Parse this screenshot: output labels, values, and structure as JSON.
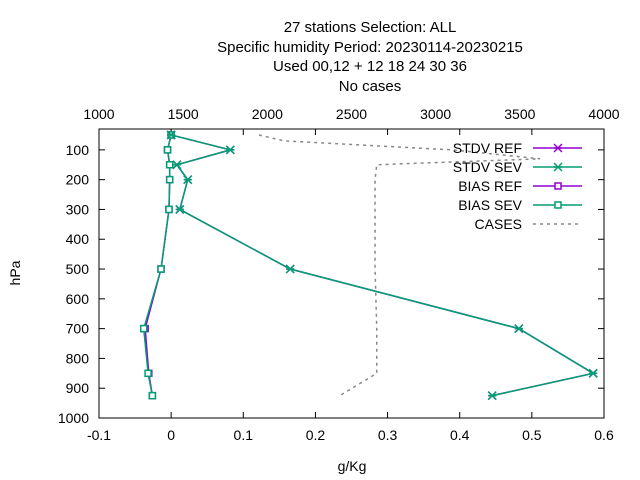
{
  "chart_data": {
    "type": "line",
    "title_lines": [
      "27 stations Selection: ALL",
      "Specific humidity  Period: 20230114-20230215",
      "Used  00,12  + 12 18 24 30 36",
      "No cases"
    ],
    "xlabel": "g/Kg",
    "ylabel": "hPa",
    "x_bottom": {
      "range": [
        -0.1,
        0.6
      ],
      "ticks": [
        "-0.1",
        "0",
        "0.1",
        "0.2",
        "0.3",
        "0.4",
        "0.5",
        "0.6"
      ]
    },
    "x_top": {
      "range": [
        1000,
        4000
      ],
      "ticks": [
        "1000",
        "1500",
        "2000",
        "2500",
        "3000",
        "3500",
        "4000"
      ]
    },
    "y": {
      "range": [
        1000,
        30
      ],
      "inverted": true,
      "ticks": [
        "100",
        "200",
        "300",
        "400",
        "500",
        "600",
        "700",
        "800",
        "900",
        "1000"
      ]
    },
    "grid": false,
    "legend_position": "top-right",
    "series": [
      {
        "name": "STDV REF",
        "color": "#9400d3",
        "marker": "x",
        "axis": "bottom",
        "points": [
          [
            0.0,
            50
          ],
          [
            0.082,
            100
          ],
          [
            0.008,
            150
          ],
          [
            0.023,
            200
          ],
          [
            0.012,
            300
          ],
          [
            0.165,
            500
          ],
          [
            0.482,
            700
          ],
          [
            0.585,
            850
          ],
          [
            0.445,
            925
          ]
        ]
      },
      {
        "name": "STDV SEV",
        "color": "#009e73",
        "marker": "x",
        "axis": "bottom",
        "points": [
          [
            0.0,
            50
          ],
          [
            0.082,
            100
          ],
          [
            0.008,
            150
          ],
          [
            0.023,
            200
          ],
          [
            0.012,
            300
          ],
          [
            0.165,
            500
          ],
          [
            0.482,
            700
          ],
          [
            0.585,
            850
          ],
          [
            0.445,
            925
          ]
        ]
      },
      {
        "name": "BIAS REF",
        "color": "#9400d3",
        "marker": "square",
        "axis": "bottom",
        "points": [
          [
            0.0,
            50
          ],
          [
            -0.005,
            100
          ],
          [
            -0.002,
            150
          ],
          [
            -0.002,
            200
          ],
          [
            -0.003,
            300
          ],
          [
            -0.014,
            500
          ],
          [
            -0.036,
            700
          ],
          [
            -0.031,
            850
          ],
          [
            -0.026,
            925
          ]
        ]
      },
      {
        "name": "BIAS SEV",
        "color": "#009e73",
        "marker": "square",
        "axis": "bottom",
        "points": [
          [
            0.0,
            50
          ],
          [
            -0.005,
            100
          ],
          [
            -0.002,
            150
          ],
          [
            -0.002,
            200
          ],
          [
            -0.003,
            300
          ],
          [
            -0.014,
            500
          ],
          [
            -0.038,
            700
          ],
          [
            -0.032,
            850
          ],
          [
            -0.026,
            925
          ]
        ]
      },
      {
        "name": "CASES",
        "color": "#888888",
        "marker": "none",
        "dashed": true,
        "axis": "top",
        "points": [
          [
            1950,
            50
          ],
          [
            2100,
            70
          ],
          [
            3100,
            100
          ],
          [
            3620,
            130
          ],
          [
            2650,
            150
          ],
          [
            2640,
            200
          ],
          [
            2640,
            300
          ],
          [
            2640,
            500
          ],
          [
            2650,
            700
          ],
          [
            2650,
            850
          ],
          [
            2430,
            925
          ]
        ]
      }
    ]
  }
}
